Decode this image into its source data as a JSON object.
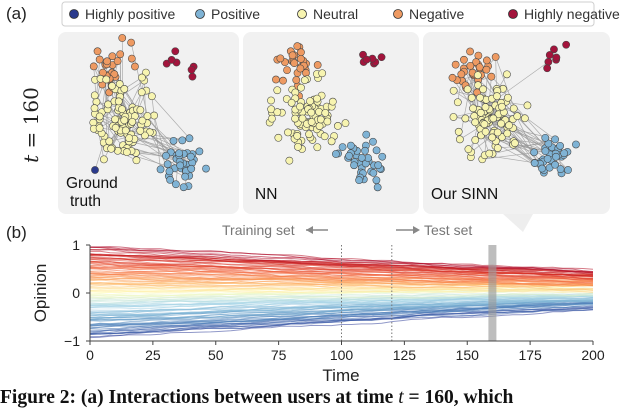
{
  "chart_data": [
    {
      "type": "scatter",
      "panel": "(a)",
      "row_label": "t = 160",
      "legend": [
        {
          "label": "Highly positive",
          "color": "#2b3a8c"
        },
        {
          "label": "Positive",
          "color": "#7fb3d5"
        },
        {
          "label": "Neutral",
          "color": "#f7f4b0"
        },
        {
          "label": "Negative",
          "color": "#ee9a62"
        },
        {
          "label": "Highly negative",
          "color": "#a3143c"
        }
      ],
      "subplots": [
        {
          "label": "Ground truth",
          "label_lines": [
            "Ground",
            "truth"
          ],
          "edges": true
        },
        {
          "label": "NN",
          "label_lines": [
            "NN"
          ],
          "edges": false
        },
        {
          "label": "Our SINN",
          "label_lines": [
            "Our SINN"
          ],
          "edges": true
        }
      ]
    },
    {
      "type": "line",
      "panel": "(b)",
      "xlabel": "Time",
      "ylabel": "Opinion",
      "xlim": [
        0,
        200
      ],
      "ylim": [
        -1,
        1
      ],
      "xticks": [
        0,
        25,
        50,
        75,
        100,
        125,
        150,
        175,
        200
      ],
      "yticks": [
        -1,
        0,
        1
      ],
      "train_label": "Training set",
      "test_label": "Test set",
      "train_end": 100,
      "test_start": 120,
      "highlight_time": 160,
      "series_summary": {
        "count": 120,
        "start_range": [
          -0.9,
          0.95
        ],
        "end_range": [
          -0.3,
          0.45
        ],
        "colormap": "RdYlBu"
      }
    }
  ],
  "caption": {
    "prefix": "Figure 2: (a) Interactions between users at time ",
    "var": "t",
    "suffix": " = 160, which"
  }
}
